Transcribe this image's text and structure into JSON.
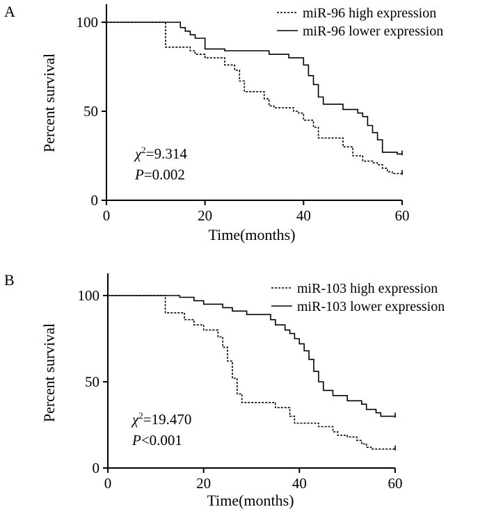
{
  "chart_data": [
    {
      "type": "line",
      "panel_label": "A",
      "title": "",
      "xlabel": "Time(months)",
      "ylabel": "Percent survival",
      "xlim": [
        0,
        60
      ],
      "ylim": [
        0,
        100
      ],
      "xticks": [
        "0",
        "20",
        "40",
        "60"
      ],
      "yticks": [
        "0",
        "50",
        "100"
      ],
      "legend_position": "top-right",
      "stats": {
        "chi_symbol": "χ",
        "chi_value": "=9.314",
        "p_symbol": "P",
        "p_value": "=0.002"
      },
      "series": [
        {
          "name": "miR-96 high expression",
          "style": "dotted",
          "points": [
            [
              0,
              100
            ],
            [
              12,
              100
            ],
            [
              12,
              86
            ],
            [
              17,
              86
            ],
            [
              17,
              84
            ],
            [
              18,
              84
            ],
            [
              18,
              82
            ],
            [
              20,
              82
            ],
            [
              20,
              80
            ],
            [
              24,
              80
            ],
            [
              24,
              76
            ],
            [
              26,
              76
            ],
            [
              26,
              73
            ],
            [
              27,
              73
            ],
            [
              27,
              67
            ],
            [
              28,
              67
            ],
            [
              28,
              61
            ],
            [
              32,
              61
            ],
            [
              32,
              57
            ],
            [
              33,
              57
            ],
            [
              33,
              53
            ],
            [
              34,
              53
            ],
            [
              34,
              52
            ],
            [
              38,
              52
            ],
            [
              38,
              50
            ],
            [
              39,
              50
            ],
            [
              39,
              49
            ],
            [
              40,
              49
            ],
            [
              40,
              45
            ],
            [
              42,
              45
            ],
            [
              42,
              41
            ],
            [
              43,
              41
            ],
            [
              43,
              35
            ],
            [
              48,
              35
            ],
            [
              48,
              30
            ],
            [
              50,
              30
            ],
            [
              50,
              25
            ],
            [
              52,
              25
            ],
            [
              52,
              22
            ],
            [
              54,
              22
            ],
            [
              54,
              21
            ],
            [
              55,
              21
            ],
            [
              55,
              20
            ],
            [
              56,
              20
            ],
            [
              56,
              18
            ],
            [
              57,
              18
            ],
            [
              57,
              16
            ],
            [
              58,
              16
            ],
            [
              58,
              15
            ],
            [
              60,
              15
            ]
          ]
        },
        {
          "name": "miR-96 lower expression",
          "style": "solid",
          "points": [
            [
              0,
              100
            ],
            [
              15,
              100
            ],
            [
              15,
              97
            ],
            [
              16,
              97
            ],
            [
              16,
              95
            ],
            [
              17,
              95
            ],
            [
              17,
              93
            ],
            [
              18,
              93
            ],
            [
              18,
              91
            ],
            [
              20,
              91
            ],
            [
              20,
              85
            ],
            [
              24,
              85
            ],
            [
              24,
              84
            ],
            [
              33,
              84
            ],
            [
              33,
              82
            ],
            [
              37,
              82
            ],
            [
              37,
              80
            ],
            [
              40,
              80
            ],
            [
              40,
              76
            ],
            [
              41,
              76
            ],
            [
              41,
              70
            ],
            [
              42,
              70
            ],
            [
              42,
              65
            ],
            [
              43,
              65
            ],
            [
              43,
              58
            ],
            [
              44,
              58
            ],
            [
              44,
              54
            ],
            [
              48,
              54
            ],
            [
              48,
              51
            ],
            [
              51,
              51
            ],
            [
              51,
              49
            ],
            [
              52,
              49
            ],
            [
              52,
              47
            ],
            [
              53,
              47
            ],
            [
              53,
              42
            ],
            [
              54,
              42
            ],
            [
              54,
              38
            ],
            [
              55,
              38
            ],
            [
              55,
              34
            ],
            [
              56,
              34
            ],
            [
              56,
              27
            ],
            [
              59,
              27
            ],
            [
              59,
              26
            ],
            [
              60,
              26
            ]
          ]
        }
      ]
    },
    {
      "type": "line",
      "panel_label": "B",
      "title": "",
      "xlabel": "Time(months)",
      "ylabel": "Percent survival",
      "xlim": [
        0,
        60
      ],
      "ylim": [
        0,
        100
      ],
      "xticks": [
        "0",
        "20",
        "40",
        "60"
      ],
      "yticks": [
        "0",
        "50",
        "100"
      ],
      "legend_position": "top-right",
      "stats": {
        "chi_symbol": "χ",
        "chi_value": "=19.470",
        "p_symbol": "P",
        "p_value": "<0.001"
      },
      "series": [
        {
          "name": "miR-103 high expression",
          "style": "dotted",
          "points": [
            [
              0,
              100
            ],
            [
              12,
              100
            ],
            [
              12,
              90
            ],
            [
              16,
              90
            ],
            [
              16,
              86
            ],
            [
              18,
              86
            ],
            [
              18,
              83
            ],
            [
              20,
              83
            ],
            [
              20,
              80
            ],
            [
              23,
              80
            ],
            [
              23,
              76
            ],
            [
              24,
              76
            ],
            [
              24,
              70
            ],
            [
              25,
              70
            ],
            [
              25,
              62
            ],
            [
              26,
              62
            ],
            [
              26,
              52
            ],
            [
              27,
              52
            ],
            [
              27,
              43
            ],
            [
              28,
              43
            ],
            [
              28,
              38
            ],
            [
              35,
              38
            ],
            [
              35,
              35
            ],
            [
              38,
              35
            ],
            [
              38,
              30
            ],
            [
              39,
              30
            ],
            [
              39,
              26
            ],
            [
              44,
              26
            ],
            [
              44,
              24
            ],
            [
              47,
              24
            ],
            [
              47,
              21
            ],
            [
              48,
              21
            ],
            [
              48,
              19
            ],
            [
              50,
              19
            ],
            [
              50,
              18
            ],
            [
              52,
              18
            ],
            [
              52,
              16
            ],
            [
              53,
              16
            ],
            [
              53,
              14
            ],
            [
              54,
              14
            ],
            [
              54,
              12
            ],
            [
              55,
              12
            ],
            [
              55,
              11
            ],
            [
              60,
              11
            ]
          ]
        },
        {
          "name": "miR-103 lower expression",
          "style": "solid",
          "points": [
            [
              0,
              100
            ],
            [
              15,
              100
            ],
            [
              15,
              99
            ],
            [
              18,
              99
            ],
            [
              18,
              97
            ],
            [
              20,
              97
            ],
            [
              20,
              95
            ],
            [
              24,
              95
            ],
            [
              24,
              93
            ],
            [
              26,
              93
            ],
            [
              26,
              91
            ],
            [
              29,
              91
            ],
            [
              29,
              89
            ],
            [
              34,
              89
            ],
            [
              34,
              86
            ],
            [
              35,
              86
            ],
            [
              35,
              83
            ],
            [
              37,
              83
            ],
            [
              37,
              80
            ],
            [
              38,
              80
            ],
            [
              38,
              78
            ],
            [
              39,
              78
            ],
            [
              39,
              75
            ],
            [
              40,
              75
            ],
            [
              40,
              72
            ],
            [
              41,
              72
            ],
            [
              41,
              68
            ],
            [
              42,
              68
            ],
            [
              42,
              63
            ],
            [
              43,
              63
            ],
            [
              43,
              56
            ],
            [
              44,
              56
            ],
            [
              44,
              50
            ],
            [
              45,
              50
            ],
            [
              45,
              45
            ],
            [
              47,
              45
            ],
            [
              47,
              42
            ],
            [
              50,
              42
            ],
            [
              50,
              39
            ],
            [
              53,
              39
            ],
            [
              53,
              37
            ],
            [
              54,
              37
            ],
            [
              54,
              34
            ],
            [
              56,
              34
            ],
            [
              56,
              32
            ],
            [
              57,
              32
            ],
            [
              57,
              30
            ],
            [
              60,
              30
            ]
          ]
        }
      ]
    }
  ]
}
